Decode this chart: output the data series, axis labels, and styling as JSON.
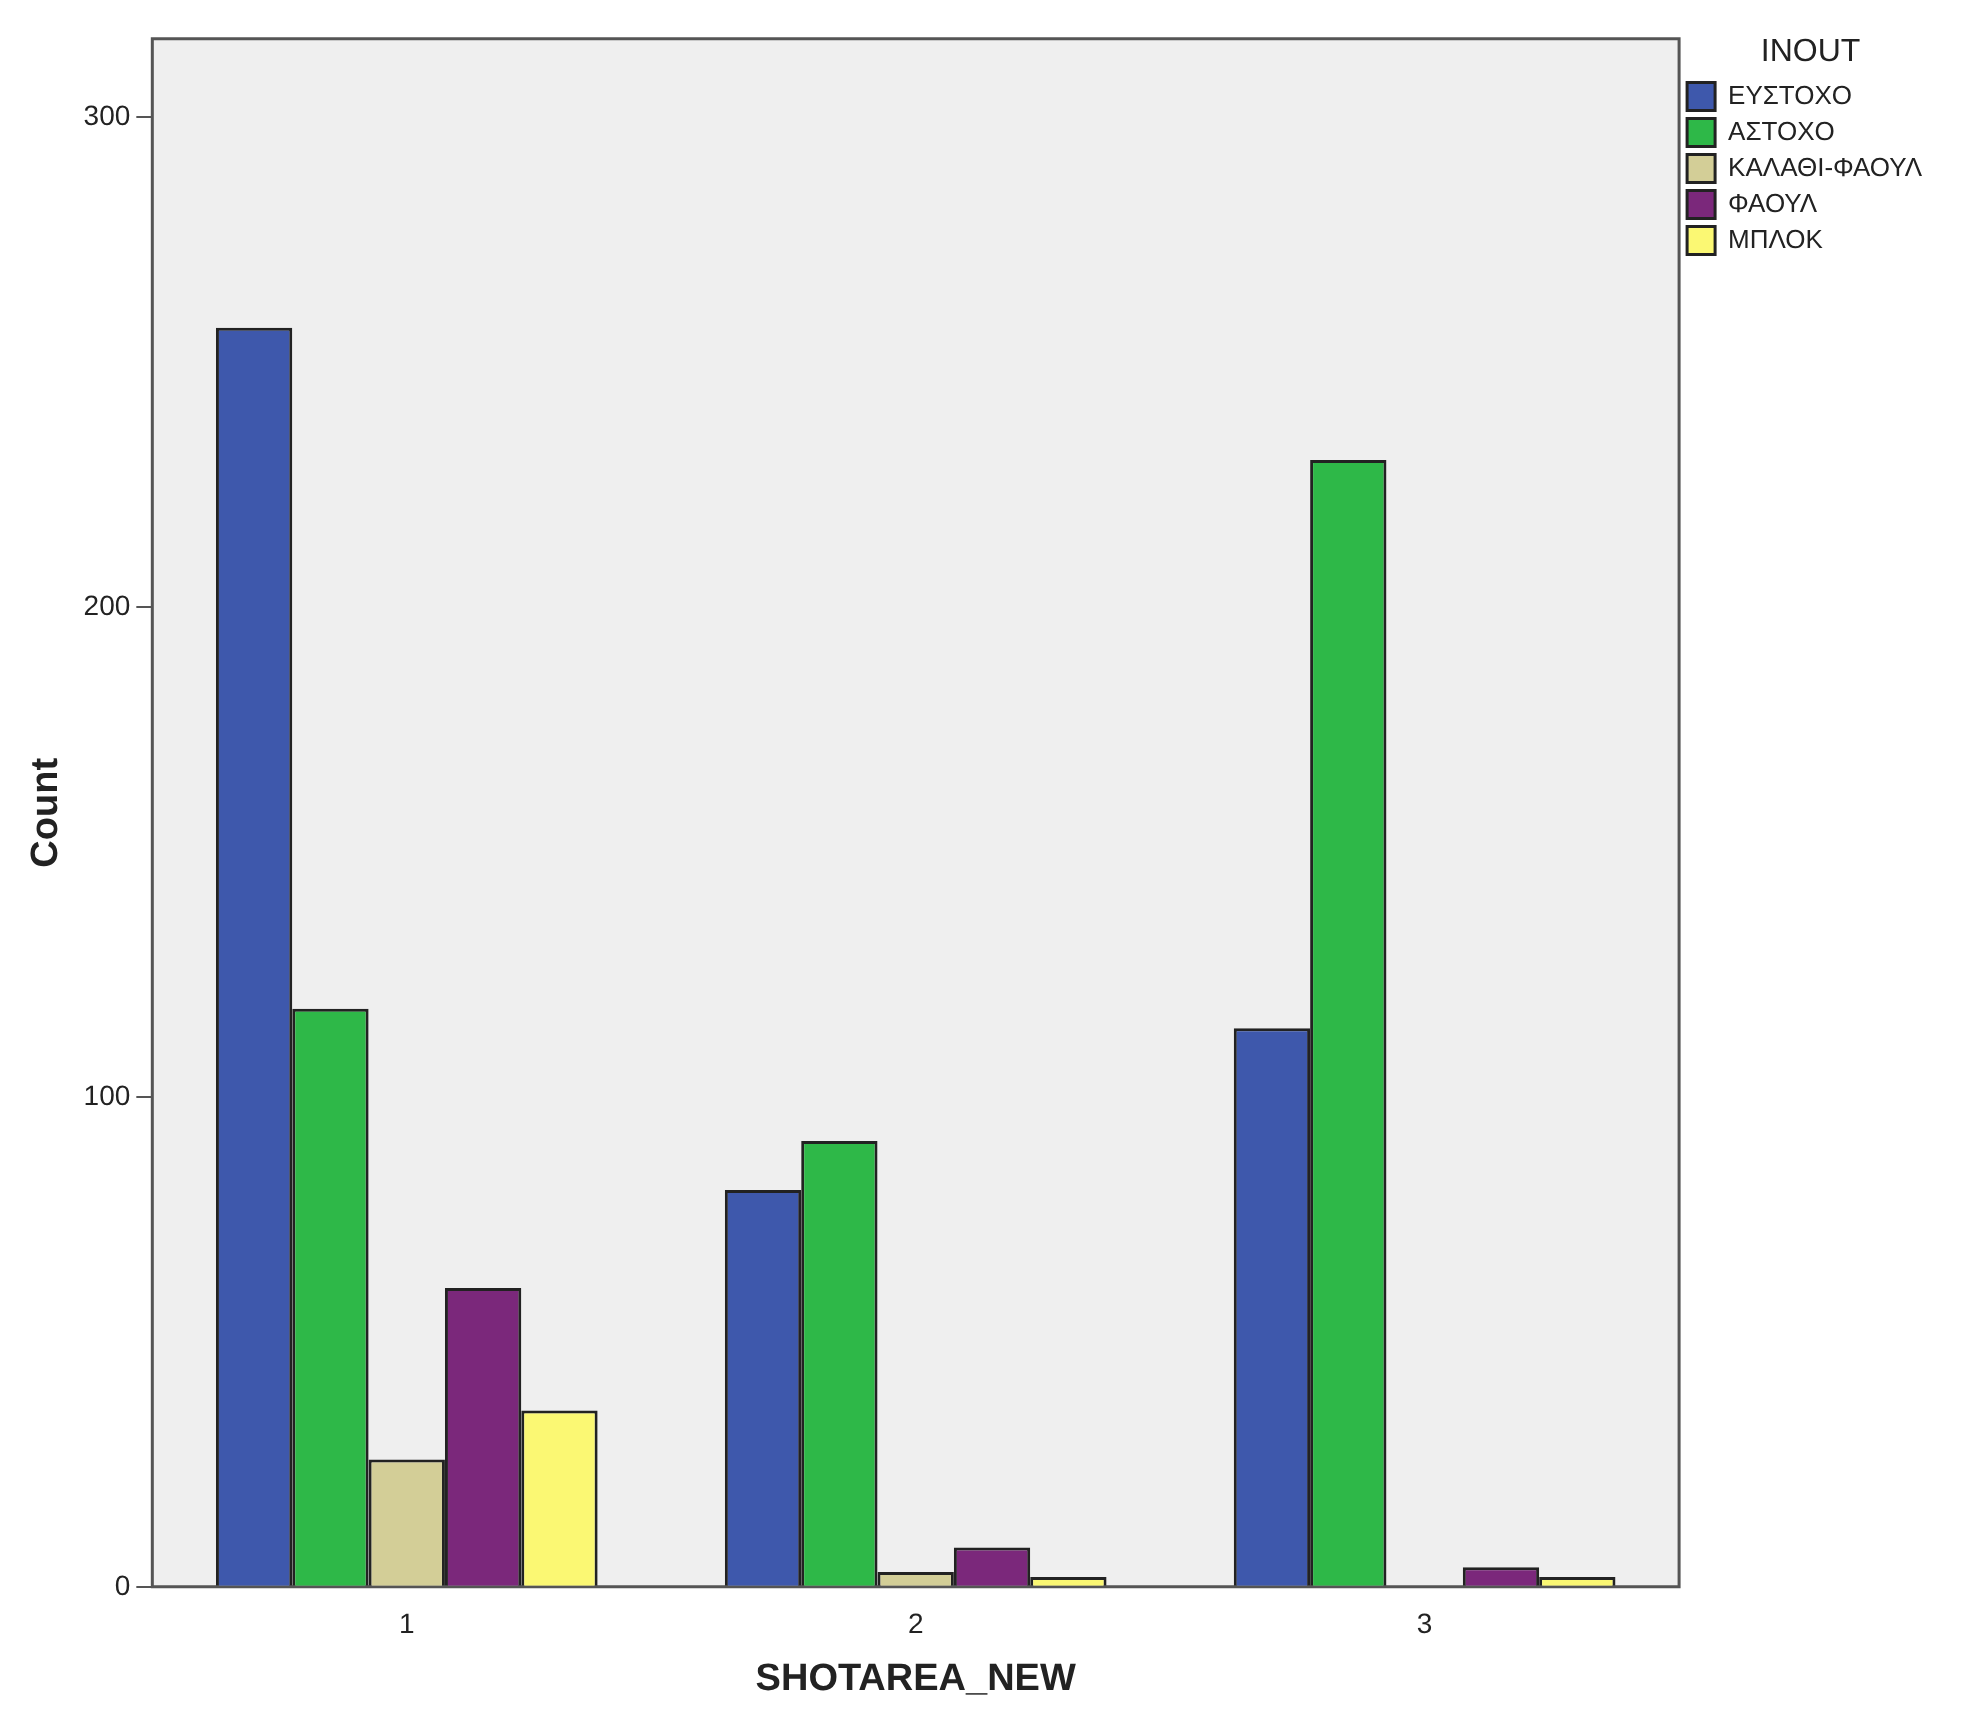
{
  "chart_data": {
    "type": "bar",
    "xlabel": "SHOTAREA_NEW",
    "ylabel": "Count",
    "legend_title": "INOUT",
    "categories": [
      "1",
      "2",
      "3"
    ],
    "series": [
      {
        "name": "ΕΥΣΤΟΧΟ",
        "color": "#3e58ac",
        "values": [
          257,
          81,
          114
        ]
      },
      {
        "name": "ΑΣΤΟΧΟ",
        "color": "#2eb848",
        "values": [
          118,
          91,
          230
        ]
      },
      {
        "name": "ΚΑΛΑΘΙ-ΦΑΟΥΛ",
        "color": "#d3ce97",
        "values": [
          26,
          3,
          null
        ]
      },
      {
        "name": "ΦΑΟΥΛ",
        "color": "#7b287b",
        "values": [
          61,
          8,
          4
        ]
      },
      {
        "name": "ΜΠΛΟΚ",
        "color": "#fbf873",
        "values": [
          36,
          2,
          2
        ]
      }
    ],
    "ylim": [
      0,
      316
    ],
    "yticks": [
      0,
      100,
      200,
      300
    ],
    "grid": false,
    "legend": "top right"
  }
}
